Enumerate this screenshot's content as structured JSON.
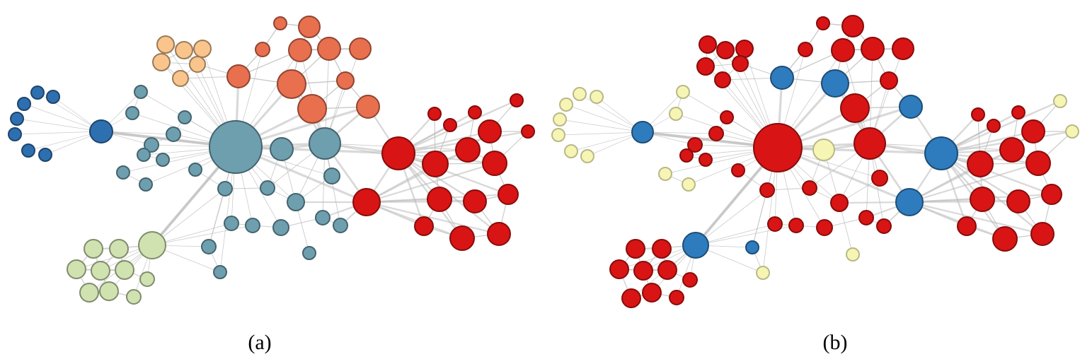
{
  "panels": [
    {
      "caption": "(a)",
      "description_colors": {
        "dark-blue": "#2E6FB0",
        "steel-blue": "#6E9FAF",
        "peach": "#F9C58C",
        "salmon": "#E8704F",
        "red": "#D91414",
        "light-green": "#CFE2B0"
      }
    },
    {
      "caption": "(b)",
      "description_colors": {
        "red": "#D91414",
        "blue": "#2E7CBE",
        "pale-yellow": "#F6F5B4"
      }
    }
  ]
}
